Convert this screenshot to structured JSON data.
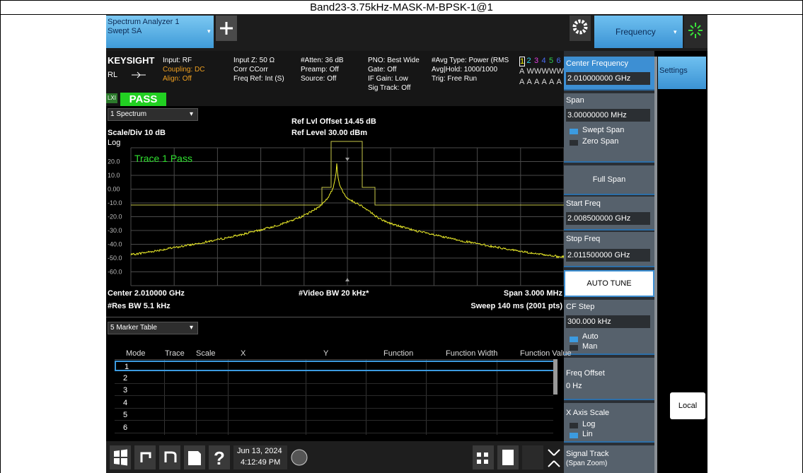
{
  "title": "Band23-3.75kHz-MASK-M-BPSK-1@1",
  "top_bar": {
    "tab": [
      "Spectrum Analyzer 1",
      "Swept SA"
    ],
    "menu": "Frequency"
  },
  "status": {
    "brand": "KEYSIGHT",
    "input": [
      "Input: RF",
      "Coupling: DC",
      "Align: Off"
    ],
    "rl": "RL",
    "lxi": "LXI",
    "result": "PASS",
    "columns": [
      [
        "Input Z: 50 Ω",
        "Corr CCorr",
        "Freq Ref: Int (S)"
      ],
      [
        "#Atten: 36 dB",
        "Preamp: Off",
        "Source: Off"
      ],
      [
        "PNO: Best Wide",
        "Gate: Off",
        "IF Gain: Low",
        "Sig Track: Off"
      ],
      [
        "#Avg Type: Power (RMS",
        "Avg|Hold: 1000/1000",
        "Trig: Free Run"
      ]
    ],
    "traces": {
      "numbers": [
        "1",
        "2",
        "3",
        "4",
        "5",
        "6"
      ],
      "types": [
        "A",
        "W",
        "W",
        "W",
        "W",
        "W"
      ],
      "detectors": [
        "A",
        "A",
        "A",
        "A",
        "A",
        "A"
      ]
    }
  },
  "graph": {
    "window": "1 Spectrum",
    "scale": "Scale/Div 10 dB",
    "log": "Log",
    "ref_offset": "Ref Lvl Offset 14.45 dB",
    "ref_level": "Ref Level 30.00 dBm",
    "trace_status": "Trace 1 Pass",
    "y_labels": [
      "20.0",
      "10.0",
      "0.00",
      "-10.0",
      "-20.0",
      "-30.0",
      "-40.0",
      "-50.0",
      "-60.0"
    ],
    "center": "Center 2.010000 GHz",
    "video_bw": "#Video BW 20 kHz*",
    "span": "Span 3.000 MHz",
    "res_bw": "#Res BW 5.1 kHz",
    "sweep": "Sweep 140 ms (2001 pts)"
  },
  "marker_table": {
    "window": "5 Marker Table",
    "headers": [
      "Mode",
      "Trace",
      "Scale",
      "X",
      "Y",
      "Function",
      "Function Width",
      "Function Value"
    ],
    "rows": [
      "1",
      "2",
      "3",
      "4",
      "5",
      "6"
    ]
  },
  "softkeys": {
    "center": {
      "label": "Center Frequency",
      "value": "2.010000000 GHz"
    },
    "span": {
      "label": "Span",
      "value": "3.00000000 MHz",
      "options": [
        "Swept Span",
        "Zero Span"
      ]
    },
    "full_span": "Full Span",
    "start": {
      "label": "Start Freq",
      "value": "2.008500000 GHz"
    },
    "stop": {
      "label": "Stop Freq",
      "value": "2.011500000 GHz"
    },
    "auto_tune": "AUTO TUNE",
    "cf_step": {
      "label": "CF Step",
      "value": "300.000 kHz",
      "options": [
        "Auto",
        "Man"
      ]
    },
    "offset": {
      "label": "Freq Offset",
      "value": "0 Hz"
    },
    "x_scale": {
      "label": "X Axis Scale",
      "options": [
        "Log",
        "Lin"
      ]
    },
    "signal_track": {
      "label": "Signal Track",
      "value": "(Span Zoom)"
    }
  },
  "side": {
    "settings": "Settings",
    "local": "Local"
  },
  "taskbar": {
    "date": "Jun 13, 2024",
    "time": "4:12:49 PM"
  }
}
